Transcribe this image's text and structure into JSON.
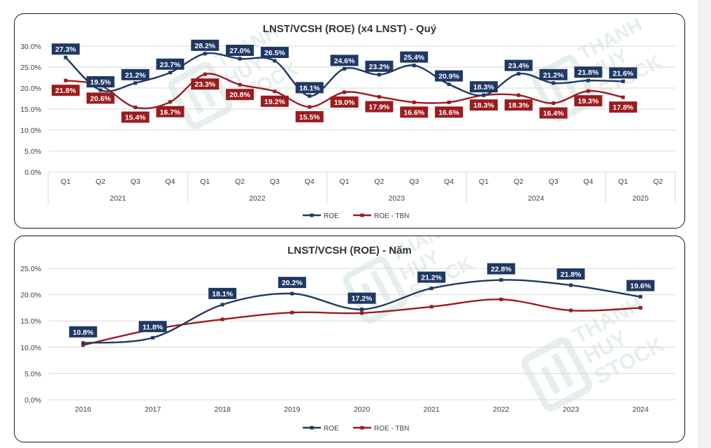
{
  "watermark": "THANH HUY STOCK",
  "colors": {
    "roe": "#1f3864",
    "roe_tbn": "#9b1c1f",
    "grid": "#d9d9d9",
    "axis_text": "#404040",
    "watermark": "#e6efec"
  },
  "chart_data": [
    {
      "type": "line",
      "title": "LNST/VCSH (ROE) (x4 LNST) - Quý",
      "categories": [
        "Q1",
        "Q2",
        "Q3",
        "Q4",
        "Q1",
        "Q2",
        "Q3",
        "Q4",
        "Q1",
        "Q2",
        "Q3",
        "Q4",
        "Q1",
        "Q2",
        "Q3",
        "Q4",
        "Q1",
        "Q2"
      ],
      "groups": [
        {
          "label": "2021",
          "size": 4
        },
        {
          "label": "2022",
          "size": 4
        },
        {
          "label": "2023",
          "size": 4
        },
        {
          "label": "2024",
          "size": 4
        },
        {
          "label": "2025",
          "size": 2
        }
      ],
      "series": [
        {
          "name": "ROE",
          "values": [
            27.3,
            19.5,
            21.2,
            23.7,
            28.2,
            27.0,
            26.5,
            18.1,
            24.6,
            23.2,
            25.4,
            20.9,
            18.3,
            23.4,
            21.2,
            21.8,
            21.6,
            null
          ],
          "labels": [
            "27.3%",
            "19.5%",
            "21.2%",
            "23.7%",
            "28.2%",
            "27.0%",
            "26.5%",
            "18.1%",
            "24.6%",
            "23.2%",
            "25.4%",
            "20.9%",
            "18.3%",
            "23.4%",
            "21.2%",
            "21.8%",
            "21.6%",
            ""
          ]
        },
        {
          "name": "ROE - TBN",
          "values": [
            21.8,
            20.6,
            15.4,
            16.7,
            23.3,
            20.8,
            19.2,
            15.5,
            19.0,
            17.9,
            16.6,
            16.6,
            18.3,
            18.3,
            16.4,
            19.3,
            17.8,
            null
          ],
          "labels": [
            "21.8%",
            "20.6%",
            "15.4%",
            "16.7%",
            "23.3%",
            "20.8%",
            "19.2%",
            "15.5%",
            "19.0%",
            "17.9%",
            "16.6%",
            "16.6%",
            "18.3%",
            "18.3%",
            "16.4%",
            "19.3%",
            "17.8%",
            ""
          ]
        }
      ],
      "ylim": [
        0,
        30
      ],
      "yticks": [
        "0.0%",
        "5.0%",
        "10.0%",
        "15.0%",
        "20.0%",
        "25.0%",
        "30.0%"
      ],
      "legend": [
        "ROE",
        "ROE - TBN"
      ],
      "legend_position": "bottom"
    },
    {
      "type": "line",
      "title": "LNST/VCSH (ROE) - Năm",
      "categories": [
        "2016",
        "2017",
        "2018",
        "2019",
        "2020",
        "2021",
        "2022",
        "2023",
        "2024"
      ],
      "series": [
        {
          "name": "ROE",
          "values": [
            10.8,
            11.8,
            18.1,
            20.2,
            17.2,
            21.2,
            22.8,
            21.8,
            19.6
          ],
          "labels": [
            "10.8%",
            "11.8%",
            "18.1%",
            "20.2%",
            "17.2%",
            "21.2%",
            "22.8%",
            "21.8%",
            "19.6%"
          ]
        },
        {
          "name": "ROE - TBN",
          "values": [
            10.4,
            13.4,
            15.3,
            16.6,
            16.5,
            17.7,
            19.1,
            17.0,
            17.5
          ],
          "labels": []
        }
      ],
      "ylim": [
        0,
        25
      ],
      "yticks": [
        "0.0%",
        "5.0%",
        "10.0%",
        "15.0%",
        "20.0%",
        "25.0%"
      ],
      "legend": [
        "ROE",
        "ROE - TBN"
      ],
      "legend_position": "bottom"
    }
  ]
}
